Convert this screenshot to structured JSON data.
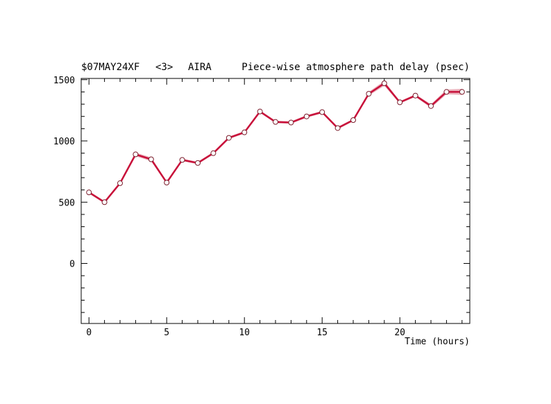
{
  "header": {
    "experiment": "$07MAY24XF",
    "channel": "<3>",
    "station": "AIRA",
    "title": "Piece-wise atmosphere path delay (psec)"
  },
  "chart_data": {
    "type": "line",
    "title": "Piece-wise atmosphere path delay (psec)",
    "xlabel": "Time (hours)",
    "ylabel": "",
    "xlim": [
      -0.5,
      24.5
    ],
    "ylim": [
      -490,
      1510
    ],
    "x_ticks": [
      0,
      5,
      10,
      15,
      20
    ],
    "y_ticks": [
      0,
      500,
      1000,
      1500
    ],
    "grid": false,
    "legend": "none",
    "series_color": "#c8103a",
    "band_color": "#e8a4b0",
    "x": [
      0,
      1,
      2,
      3,
      4,
      5,
      6,
      7,
      8,
      9,
      10,
      11,
      12,
      13,
      14,
      15,
      16,
      17,
      18,
      19,
      20,
      21,
      22,
      23,
      24
    ],
    "values": [
      580,
      500,
      655,
      890,
      850,
      660,
      845,
      820,
      900,
      1025,
      1070,
      1240,
      1155,
      1150,
      1200,
      1235,
      1105,
      1170,
      1385,
      1470,
      1315,
      1370,
      1285,
      1400,
      1400
    ],
    "uncertainty": [
      10,
      10,
      10,
      15,
      15,
      10,
      10,
      10,
      10,
      10,
      10,
      10,
      10,
      10,
      10,
      10,
      10,
      10,
      15,
      20,
      10,
      10,
      15,
      20,
      25
    ]
  }
}
